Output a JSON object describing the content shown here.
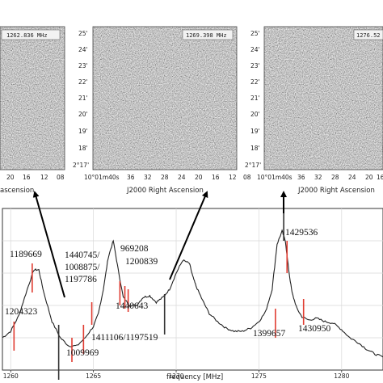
{
  "chart_data": [
    {
      "type": "line",
      "title": "",
      "xlabel": "frequency [MHz]",
      "ylabel": "",
      "xlim": [
        1259.5,
        1282.5
      ],
      "ylim": [
        0,
        1
      ],
      "x_ticks": [
        1260,
        1265,
        1270,
        1275,
        1280
      ],
      "grid": true,
      "series": [
        {
          "x": [
            1259.5,
            1260.0,
            1260.5,
            1261.0,
            1261.4,
            1261.7,
            1262.0,
            1262.5,
            1263.0,
            1263.5,
            1264.0,
            1264.5,
            1265.0,
            1265.3,
            1265.6,
            1265.9,
            1266.2,
            1266.5,
            1266.8,
            1267.2,
            1267.6,
            1268.0,
            1268.4,
            1268.8,
            1269.2,
            1269.6,
            1270.0,
            1270.4,
            1270.8,
            1271.0,
            1271.2,
            1271.6,
            1272.0,
            1272.5,
            1273.0,
            1273.5,
            1274.0,
            1274.5,
            1275.0,
            1275.4,
            1275.8,
            1276.1,
            1276.4,
            1276.6,
            1276.8,
            1277.0,
            1277.3,
            1277.6,
            1278.0,
            1278.5,
            1279.0,
            1279.5,
            1280.0,
            1280.5,
            1281.0,
            1281.5,
            1282.0,
            1282.5
          ],
          "y": [
            0.2,
            0.24,
            0.34,
            0.5,
            0.62,
            0.62,
            0.48,
            0.3,
            0.2,
            0.15,
            0.15,
            0.2,
            0.27,
            0.35,
            0.5,
            0.7,
            0.8,
            0.62,
            0.45,
            0.4,
            0.4,
            0.45,
            0.46,
            0.42,
            0.45,
            0.5,
            0.6,
            0.68,
            0.66,
            0.58,
            0.52,
            0.43,
            0.35,
            0.3,
            0.26,
            0.24,
            0.24,
            0.26,
            0.3,
            0.36,
            0.5,
            0.78,
            0.86,
            0.8,
            0.62,
            0.48,
            0.38,
            0.33,
            0.31,
            0.32,
            0.3,
            0.29,
            0.25,
            0.2,
            0.17,
            0.13,
            0.1,
            0.08
          ]
        }
      ],
      "markers": [
        {
          "x": 1260.2,
          "low": 0.12,
          "high": 0.3,
          "color": "#e03c31"
        },
        {
          "x": 1261.3,
          "low": 0.48,
          "high": 0.66,
          "color": "#e03c31"
        },
        {
          "x": 1262.9,
          "low": -0.06,
          "high": 0.28,
          "color": "#333333"
        },
        {
          "x": 1263.7,
          "low": 0.05,
          "high": 0.2,
          "color": "#e03c31"
        },
        {
          "x": 1264.4,
          "low": 0.1,
          "high": 0.28,
          "color": "#e03c31"
        },
        {
          "x": 1264.9,
          "low": 0.28,
          "high": 0.42,
          "color": "#e03c31"
        },
        {
          "x": 1266.6,
          "low": 0.4,
          "high": 0.55,
          "color": "#e03c31"
        },
        {
          "x": 1266.9,
          "low": 0.38,
          "high": 0.52,
          "color": "#e03c31"
        },
        {
          "x": 1267.1,
          "low": 0.36,
          "high": 0.5,
          "color": "#e03c31"
        },
        {
          "x": 1269.3,
          "low": 0.22,
          "high": 0.47,
          "color": "#333333"
        },
        {
          "x": 1276.0,
          "low": 0.2,
          "high": 0.38,
          "color": "#e03c31"
        },
        {
          "x": 1276.5,
          "low": 0.8,
          "high": 1.05,
          "color": "#333333"
        },
        {
          "x": 1276.7,
          "low": 0.6,
          "high": 0.8,
          "color": "#e03c31"
        },
        {
          "x": 1277.7,
          "low": 0.28,
          "high": 0.44,
          "color": "#e03c31"
        }
      ],
      "annotations": [
        "1189669",
        "1204323",
        "1440745/",
        "1008875/",
        "1197786",
        "969208",
        "1200839",
        "1440643",
        "1411106/1197519",
        "1009969",
        "1429536",
        "1399657",
        "1430950"
      ]
    }
  ],
  "panels": [
    {
      "freq_label": "1262.836 MHz",
      "x_ticks": [
        "20",
        "16",
        "12",
        "08"
      ],
      "xlabel": "ascension",
      "y_ticks": []
    },
    {
      "freq_label": "1269.398 MHz",
      "x_ticks": [
        "10°01m40s",
        "36",
        "32",
        "28",
        "24",
        "20",
        "16",
        "12",
        "08"
      ],
      "xlabel": "J2000 Right Ascension",
      "y_ticks": [
        "25'",
        "24'",
        "23'",
        "22'",
        "21'",
        "20'",
        "19'",
        "18'",
        "2°17'"
      ]
    },
    {
      "freq_label": "1276.52",
      "x_ticks": [
        "10°01m40s",
        "36",
        "32",
        "28",
        "24",
        "20",
        "16"
      ],
      "xlabel": "J2000 Right Ascension",
      "y_ticks": [
        "25'",
        "24'",
        "23'",
        "22'",
        "21'",
        "20'",
        "19'",
        "18'",
        "2°17'"
      ]
    }
  ],
  "colors": {
    "red_marker": "#e03c31",
    "black_marker": "#333333",
    "line": "#222222",
    "noise_base": "#8a8a8a"
  }
}
